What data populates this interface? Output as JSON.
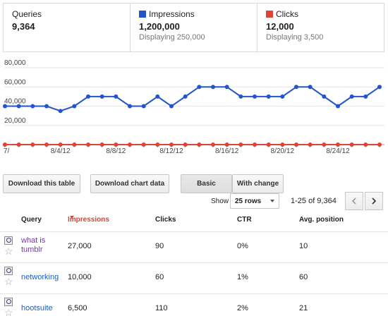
{
  "summary": {
    "queries": {
      "label": "Queries",
      "value": "9,364"
    },
    "impressions": {
      "label": "Impressions",
      "value": "1,200,000",
      "sub": "Displaying 250,000",
      "color": "#2255cc"
    },
    "clicks": {
      "label": "Clicks",
      "value": "12,000",
      "sub": "Displaying 3,500",
      "color": "#dd4433"
    }
  },
  "chart_data": {
    "type": "line",
    "y_ticks": [
      "80,000",
      "60,000",
      "40,000",
      "20,000",
      "0"
    ],
    "ylim": [
      0,
      80000
    ],
    "x_tick_labels": [
      "7/",
      "8/4/12",
      "8/8/12",
      "8/12/12",
      "8/16/12",
      "8/20/12",
      "8/24/12"
    ],
    "x": [
      "7/31",
      "8/1",
      "8/2",
      "8/3",
      "8/4",
      "8/5",
      "8/6",
      "8/7",
      "8/8",
      "8/9",
      "8/10",
      "8/11",
      "8/12",
      "8/13",
      "8/14",
      "8/15",
      "8/16",
      "8/17",
      "8/18",
      "8/19",
      "8/20",
      "8/21",
      "8/22",
      "8/23",
      "8/24",
      "8/25",
      "8/26",
      "8/27"
    ],
    "series": [
      {
        "name": "Impressions",
        "color": "#2255cc",
        "values": [
          40000,
          40000,
          40000,
          40000,
          35000,
          40000,
          50000,
          50000,
          50000,
          40000,
          40000,
          50000,
          40000,
          50000,
          60000,
          60000,
          60000,
          50000,
          50000,
          50000,
          50000,
          60000,
          60000,
          50000,
          40000,
          50000,
          50000,
          60000
        ]
      },
      {
        "name": "Clicks",
        "color": "#dd4433",
        "values": [
          0,
          0,
          0,
          0,
          0,
          0,
          0,
          0,
          0,
          0,
          0,
          0,
          0,
          0,
          0,
          0,
          0,
          0,
          0,
          0,
          0,
          0,
          0,
          0,
          0,
          0,
          0,
          0
        ]
      }
    ],
    "grid": true
  },
  "buttons": {
    "download_table": "Download this table",
    "download_chart": "Download chart data",
    "basic": "Basic",
    "with_change": "With change"
  },
  "pager": {
    "show_label": "Show",
    "rows_value": "25 rows",
    "range": "1-25 of 9,364"
  },
  "table": {
    "headers": {
      "query": "Query",
      "impressions": "Impressions",
      "clicks": "Clicks",
      "ctr": "CTR",
      "avg_position": "Avg. position"
    },
    "rows": [
      {
        "query": "what is tumblr",
        "impressions": "27,000",
        "clicks": "90",
        "ctr": "0%",
        "avg_position": "10",
        "link_color": "#7b2fb5"
      },
      {
        "query": "networking",
        "impressions": "10,000",
        "clicks": "60",
        "ctr": "1%",
        "avg_position": "60",
        "link_color": "#1a5fc8"
      },
      {
        "query": "hootsuite",
        "impressions": "6,500",
        "clicks": "110",
        "ctr": "2%",
        "avg_position": "21",
        "link_color": "#1a5fc8"
      }
    ]
  }
}
